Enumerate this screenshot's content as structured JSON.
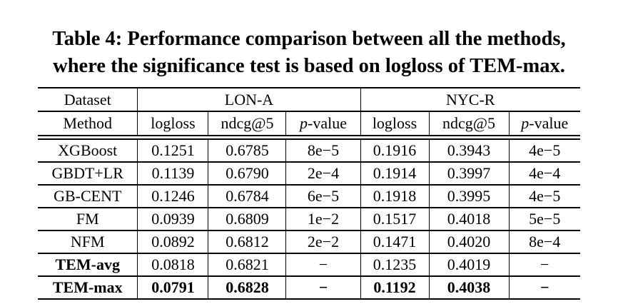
{
  "caption": {
    "line1": "Table 4: Performance comparison between all the methods,",
    "line2": "where the significance test is based on logloss of TEM-max."
  },
  "table": {
    "corner_header": "Dataset",
    "method_header": "Method",
    "groups": [
      {
        "label": "LON-A"
      },
      {
        "label": "NYC-R"
      }
    ],
    "metric_headers": {
      "logloss": "logloss",
      "ndcg": "ndcg@5",
      "p_value": {
        "italic": "p",
        "rest": "-value",
        "full": "p-value"
      }
    },
    "rows": [
      {
        "method": "XGBoost",
        "cells": [
          "0.1251",
          "0.6785",
          "8e−5",
          "0.1916",
          "0.3943",
          "4e−5"
        ]
      },
      {
        "method": "GBDT+LR",
        "cells": [
          "0.1139",
          "0.6790",
          "2e−4",
          "0.1914",
          "0.3997",
          "4e−4"
        ]
      },
      {
        "method": "GB-CENT",
        "cells": [
          "0.1246",
          "0.6784",
          "6e−5",
          "0.1918",
          "0.3995",
          "4e−5"
        ]
      },
      {
        "method": "FM",
        "cells": [
          "0.0939",
          "0.6809",
          "1e−2",
          "0.1517",
          "0.4018",
          "5e−5"
        ]
      },
      {
        "method": "NFM",
        "cells": [
          "0.0892",
          "0.6812",
          "2e−2",
          "0.1471",
          "0.4020",
          "8e−4"
        ]
      },
      {
        "method": "TEM-avg",
        "cells": [
          "0.0818",
          "0.6821",
          "−",
          "0.1235",
          "0.4019",
          "−"
        ]
      },
      {
        "method": "TEM-max",
        "cells": [
          "0.0791",
          "0.6828",
          "−",
          "0.1192",
          "0.4038",
          "−"
        ]
      }
    ]
  },
  "colors": {
    "text": "#000000",
    "background": "#ffffff",
    "rule": "#000000"
  }
}
